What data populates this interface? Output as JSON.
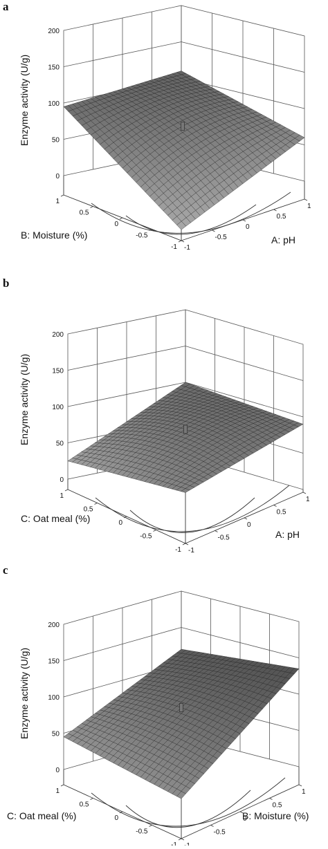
{
  "chart_data": [
    {
      "type": "surface",
      "panel_label": "a",
      "zlabel": "Enzyme activity (U/g)",
      "xlabel": "A: pH",
      "ylabel": "B: Moisture (%)",
      "zlim": [
        0,
        200
      ],
      "z_ticks": [
        "200",
        "150",
        "100",
        "50",
        "0"
      ],
      "x_ticks": [
        "-1",
        "-0.5",
        "0",
        "0.5",
        "1"
      ],
      "y_ticks": [
        "1",
        "0.5",
        "0",
        "-0.5",
        "-1"
      ],
      "grid": true,
      "surface": {
        "z_corner_far": 95,
        "z_corner_right": 60,
        "z_corner_near": 15,
        "z_corner_back": 110,
        "z_center": 125
      }
    },
    {
      "type": "surface",
      "panel_label": "b",
      "zlabel": "Enzyme activity (U/g)",
      "xlabel": "A: pH",
      "ylabel": "C: Oat meal (%)",
      "zlim": [
        0,
        200
      ],
      "z_ticks": [
        "200",
        "150",
        "100",
        "50",
        "0"
      ],
      "x_ticks": [
        "-1",
        "-0.5",
        "0",
        "0.5",
        "1"
      ],
      "y_ticks": [
        "1",
        "0.5",
        "0",
        "-0.5",
        "-1"
      ],
      "grid": true,
      "surface": {
        "z_corner_far": 25,
        "z_corner_right": 90,
        "z_corner_near": 70,
        "z_corner_back": 100,
        "z_center": 130
      }
    },
    {
      "type": "surface",
      "panel_label": "c",
      "zlabel": "Enzyme activity (U/g)",
      "xlabel": "B: Moisture (%)",
      "ylabel": "C: Oat meal (%)",
      "zlim": [
        0,
        200
      ],
      "z_ticks": [
        "200",
        "150",
        "100",
        "50",
        "0"
      ],
      "x_ticks": [
        "-1",
        "-0.5",
        "0",
        "0.5",
        "1"
      ],
      "y_ticks": [
        "1",
        "0.5",
        "0",
        "-0.5",
        "-1"
      ],
      "grid": true,
      "surface": {
        "z_corner_far": 45,
        "z_corner_right": 135,
        "z_corner_near": 55,
        "z_corner_back": 120,
        "z_center": 120
      }
    }
  ],
  "style": {
    "surface_color": "#2a2a2a",
    "surface_light": "#8c8c8c",
    "grid_color": "#555555"
  }
}
